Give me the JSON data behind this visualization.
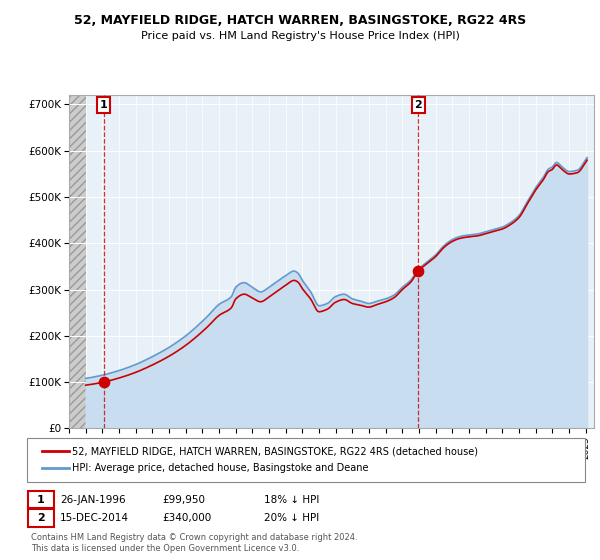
{
  "title": "52, MAYFIELD RIDGE, HATCH WARREN, BASINGSTOKE, RG22 4RS",
  "subtitle": "Price paid vs. HM Land Registry's House Price Index (HPI)",
  "legend_line1": "52, MAYFIELD RIDGE, HATCH WARREN, BASINGSTOKE, RG22 4RS (detached house)",
  "legend_line2": "HPI: Average price, detached house, Basingstoke and Deane",
  "annotation1_date": "26-JAN-1996",
  "annotation1_price": "£99,950",
  "annotation1_hpi": "18% ↓ HPI",
  "annotation2_date": "15-DEC-2014",
  "annotation2_price": "£340,000",
  "annotation2_hpi": "20% ↓ HPI",
  "footnote": "Contains HM Land Registry data © Crown copyright and database right 2024.\nThis data is licensed under the Open Government Licence v3.0.",
  "xlim_left": 1994.0,
  "xlim_right": 2025.5,
  "ylim_bottom": 0,
  "ylim_top": 720000,
  "hpi_color": "#6699cc",
  "hpi_fill_color": "#c8ddf0",
  "price_color": "#cc0000",
  "annotation_vline_color": "#cc0000",
  "background_plot": "#e8f0f8",
  "sale1_x": 1996.07,
  "sale1_y": 99950,
  "sale2_x": 2014.96,
  "sale2_y": 340000,
  "yticks": [
    0,
    100000,
    200000,
    300000,
    400000,
    500000,
    600000,
    700000
  ],
  "ytick_labels": [
    "£0",
    "£100K",
    "£200K",
    "£300K",
    "£400K",
    "£500K",
    "£600K",
    "£700K"
  ],
  "xtick_years": [
    1994,
    1995,
    1996,
    1997,
    1998,
    1999,
    2000,
    2001,
    2002,
    2003,
    2004,
    2005,
    2006,
    2007,
    2008,
    2009,
    2010,
    2011,
    2012,
    2013,
    2014,
    2015,
    2016,
    2017,
    2018,
    2019,
    2020,
    2021,
    2022,
    2023,
    2024,
    2025
  ]
}
